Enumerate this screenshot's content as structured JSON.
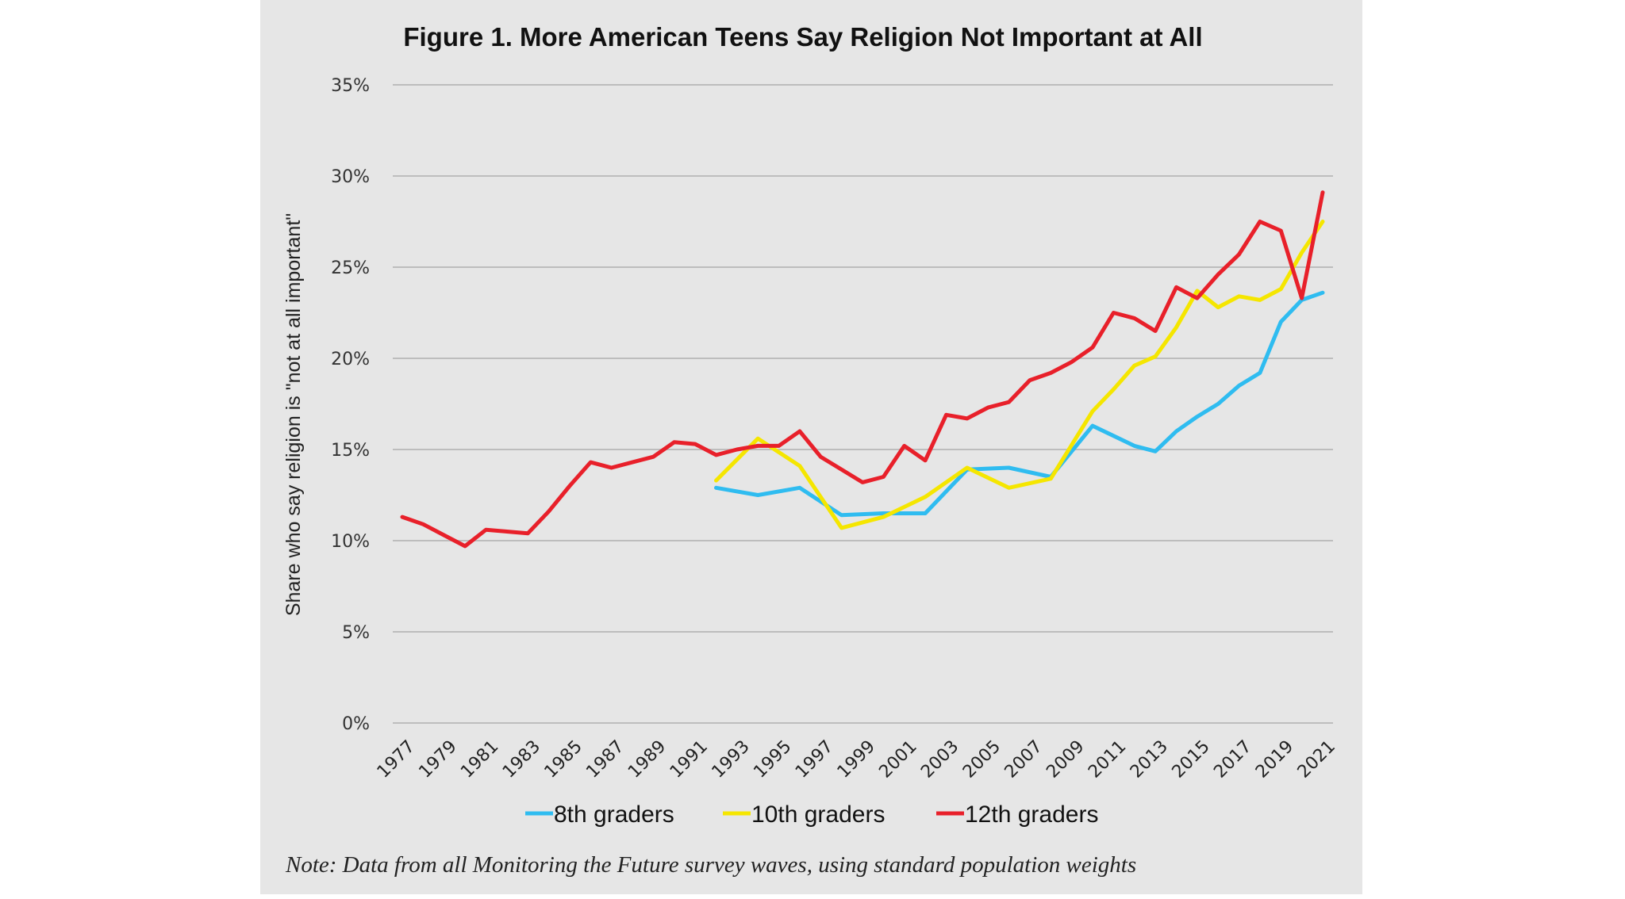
{
  "chart_data": {
    "type": "line",
    "title": "Figure 1. More American Teens Say Religion Not Important at All",
    "xlabel": "",
    "ylabel": "Share who say religion is \"not at all important\"",
    "ylim": [
      0,
      35
    ],
    "yticks": [
      "0%",
      "5%",
      "10%",
      "15%",
      "20%",
      "25%",
      "30%",
      "35%"
    ],
    "ytick_values": [
      0,
      5,
      10,
      15,
      20,
      25,
      30,
      35
    ],
    "xlim": [
      1977,
      2021
    ],
    "xticks": [
      "1977",
      "1979",
      "1981",
      "1983",
      "1985",
      "1987",
      "1989",
      "1991",
      "1993",
      "1995",
      "1997",
      "1999",
      "2001",
      "2003",
      "2005",
      "2007",
      "2009",
      "2011",
      "2013",
      "2015",
      "2017",
      "2019",
      "2021"
    ],
    "grid": true,
    "legend_position": "bottom",
    "note": "Note: Data from all Monitoring the Future survey waves, using standard population weights",
    "series": [
      {
        "name": "8th graders",
        "color": "#2fbcf0",
        "x": [
          1992,
          1994,
          1996,
          1998,
          2000,
          2002,
          2004,
          2006,
          2008,
          2010,
          2012,
          2013,
          2014,
          2015,
          2016,
          2017,
          2018,
          2019,
          2020,
          2021
        ],
        "values": [
          12.9,
          12.5,
          12.9,
          11.4,
          11.5,
          11.5,
          13.9,
          14.0,
          13.5,
          16.3,
          15.2,
          14.9,
          16.0,
          16.8,
          17.5,
          18.5,
          19.2,
          22.0,
          23.2,
          23.6
        ]
      },
      {
        "name": "10th graders",
        "color": "#f5e600",
        "x": [
          1992,
          1994,
          1996,
          1998,
          2000,
          2002,
          2004,
          2006,
          2008,
          2010,
          2011,
          2012,
          2013,
          2014,
          2015,
          2016,
          2017,
          2018,
          2019,
          2020,
          2021
        ],
        "values": [
          13.3,
          15.6,
          14.1,
          10.7,
          11.3,
          12.4,
          14.0,
          12.9,
          13.4,
          17.1,
          18.3,
          19.6,
          20.1,
          21.7,
          23.7,
          22.8,
          23.4,
          23.2,
          23.8,
          25.8,
          27.5
        ]
      },
      {
        "name": "12th graders",
        "color": "#e8202a",
        "x": [
          1977,
          1978,
          1979,
          1980,
          1981,
          1982,
          1983,
          1984,
          1985,
          1986,
          1987,
          1988,
          1989,
          1990,
          1991,
          1992,
          1993,
          1994,
          1995,
          1996,
          1997,
          1998,
          1999,
          2000,
          2001,
          2002,
          2003,
          2004,
          2005,
          2006,
          2007,
          2008,
          2009,
          2010,
          2011,
          2012,
          2013,
          2014,
          2015,
          2016,
          2017,
          2018,
          2019,
          2020,
          2021
        ],
        "values": [
          11.3,
          10.9,
          10.3,
          9.7,
          10.6,
          10.5,
          10.4,
          11.6,
          13.0,
          14.3,
          14.0,
          14.3,
          14.6,
          15.4,
          15.3,
          14.7,
          15.0,
          15.2,
          15.2,
          16.0,
          14.6,
          13.9,
          13.2,
          13.5,
          15.2,
          14.4,
          16.9,
          16.7,
          17.3,
          17.6,
          18.8,
          19.2,
          19.8,
          20.6,
          22.5,
          22.2,
          21.5,
          23.9,
          23.3,
          24.6,
          25.7,
          27.5,
          27.0,
          23.3,
          29.1
        ]
      }
    ]
  }
}
